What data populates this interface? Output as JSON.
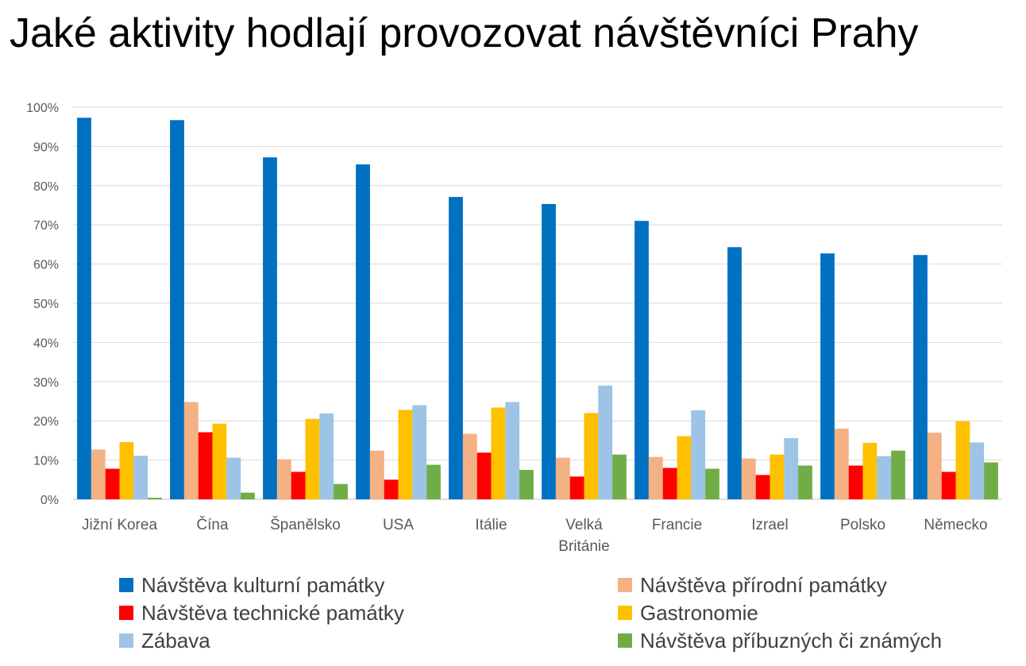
{
  "title": "Jaké aktivity hodlají provozovat návštěvníci Prahy",
  "chart_data": {
    "type": "bar",
    "title": "Jaké aktivity hodlají provozovat návštěvníci Prahy",
    "xlabel": "",
    "ylabel": "",
    "ylim": [
      0,
      100
    ],
    "yticks": [
      "0%",
      "10%",
      "20%",
      "30%",
      "40%",
      "50%",
      "60%",
      "70%",
      "80%",
      "90%",
      "100%"
    ],
    "grid": true,
    "legend_position": "bottom",
    "categories": [
      [
        "Jižní Korea"
      ],
      [
        "Čína"
      ],
      [
        "Španělsko"
      ],
      [
        "USA"
      ],
      [
        "Itálie"
      ],
      [
        "Velká",
        "Británie"
      ],
      [
        "Francie"
      ],
      [
        "Izrael"
      ],
      [
        "Polsko"
      ],
      [
        "Německo"
      ]
    ],
    "series": [
      {
        "name": "Návštěva kulturní památky",
        "color": "#0070C0",
        "values": [
          97.3,
          96.7,
          87.2,
          85.4,
          77.1,
          75.3,
          71.0,
          64.3,
          62.7,
          62.3
        ]
      },
      {
        "name": "Návštěva přírodní památky",
        "color": "#F4B183",
        "values": [
          12.7,
          24.8,
          10.2,
          12.4,
          16.7,
          10.6,
          10.8,
          10.4,
          18.0,
          17.0
        ]
      },
      {
        "name": "Návštěva technické památky",
        "color": "#FF0000",
        "values": [
          7.8,
          17.1,
          7.0,
          5.0,
          11.9,
          5.8,
          8.0,
          6.2,
          8.6,
          7.0
        ]
      },
      {
        "name": "Gastronomie",
        "color": "#FFC000",
        "values": [
          14.6,
          19.3,
          20.5,
          22.8,
          23.4,
          22.0,
          16.1,
          11.4,
          14.4,
          19.9
        ]
      },
      {
        "name": "Zábava",
        "color": "#9DC3E6",
        "values": [
          11.1,
          10.6,
          21.9,
          24.0,
          24.8,
          29.0,
          22.7,
          15.6,
          11.0,
          14.5
        ]
      },
      {
        "name": "Návštěva příbuzných či známých",
        "color": "#70AD47",
        "values": [
          0.4,
          1.7,
          3.9,
          8.8,
          7.5,
          11.4,
          7.8,
          8.6,
          12.4,
          9.4
        ]
      }
    ]
  },
  "legend_order": [
    0,
    1,
    2,
    3,
    4,
    5
  ]
}
